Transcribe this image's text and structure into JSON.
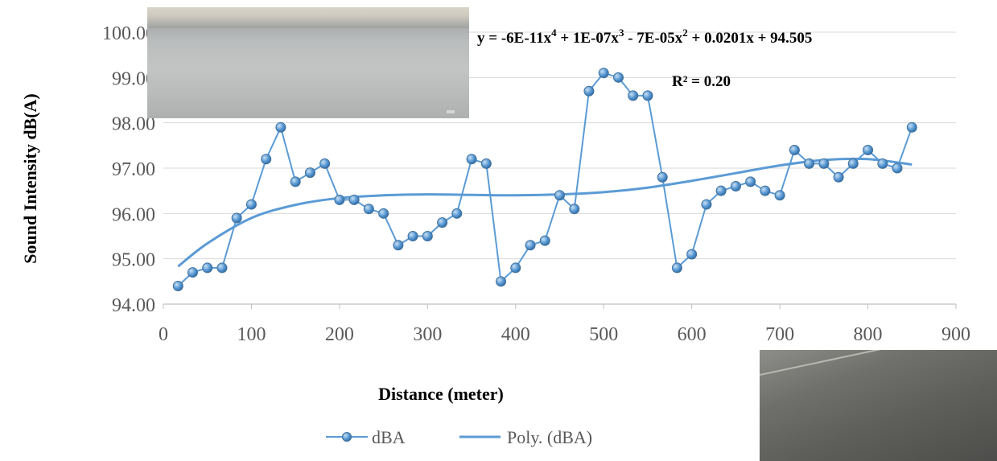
{
  "chart_data": {
    "type": "line",
    "xlabel": "Distance (meter)",
    "ylabel": "Sound Intensity dB(A)",
    "xlim": [
      0,
      900
    ],
    "ylim": [
      94,
      100
    ],
    "xticks": [
      "0",
      "100",
      "200",
      "300",
      "400",
      "500",
      "600",
      "700",
      "800",
      "900"
    ],
    "yticks": [
      "94.00",
      "95.00",
      "96.00",
      "97.00",
      "98.00",
      "99.00",
      "100.00"
    ],
    "grid": "horizontal",
    "legend_position": "bottom",
    "series": [
      {
        "name": "dBA",
        "color": "#5b9bd5",
        "marker": "circle",
        "x": [
          16.7,
          33.3,
          50,
          66.7,
          83.3,
          100,
          116.7,
          133.3,
          150,
          166.7,
          183.3,
          200,
          216.7,
          233.3,
          250,
          266.7,
          283.3,
          300,
          316.7,
          333.3,
          350,
          366.7,
          383.3,
          400,
          416.7,
          433.3,
          450,
          466.7,
          483.3,
          500,
          516.7,
          533.3,
          550,
          566.7,
          583.3,
          600,
          616.7,
          633.3,
          650,
          666.7,
          683.3,
          700,
          716.7,
          733.3,
          750,
          766.7,
          783.3,
          800,
          816.7,
          833.3,
          850
        ],
        "y": [
          94.4,
          94.7,
          94.8,
          94.8,
          95.9,
          96.2,
          97.2,
          97.9,
          96.7,
          96.9,
          97.1,
          96.3,
          96.3,
          96.1,
          96.0,
          95.3,
          95.5,
          95.5,
          95.8,
          96.0,
          97.2,
          97.1,
          94.5,
          94.8,
          95.3,
          95.4,
          96.4,
          96.1,
          98.7,
          99.1,
          99.0,
          98.6,
          98.6,
          96.8,
          94.8,
          95.1,
          96.2,
          96.5,
          96.6,
          96.7,
          96.5,
          96.4,
          97.4,
          97.1,
          97.1,
          96.8,
          97.1,
          97.4,
          97.1,
          97.0,
          97.9
        ]
      },
      {
        "name": "Poly. (dBA)",
        "color": "#5b9bd5",
        "marker": "none",
        "x": [
          16.7,
          50,
          100,
          150,
          200,
          250,
          300,
          350,
          400,
          450,
          500,
          550,
          600,
          650,
          700,
          750,
          800,
          850
        ],
        "y": [
          94.83,
          95.34,
          95.9,
          96.19,
          96.34,
          96.4,
          96.42,
          96.41,
          96.4,
          96.42,
          96.47,
          96.57,
          96.72,
          96.89,
          97.06,
          97.18,
          97.2,
          97.08
        ]
      }
    ],
    "annotations": {
      "equation_prefix": "y = -6E-11x",
      "eq_exp4": "4",
      "eq_part2": " + 1E-07x",
      "eq_exp3": "3",
      "eq_part3": " - 7E-05x",
      "eq_exp2": "2",
      "eq_part4": " + 0.0201x + 94.505",
      "r_squared_label": "R² = 0.20"
    },
    "legend": {
      "series_label": "dBA",
      "trend_label": "Poly. (dBA)"
    }
  }
}
